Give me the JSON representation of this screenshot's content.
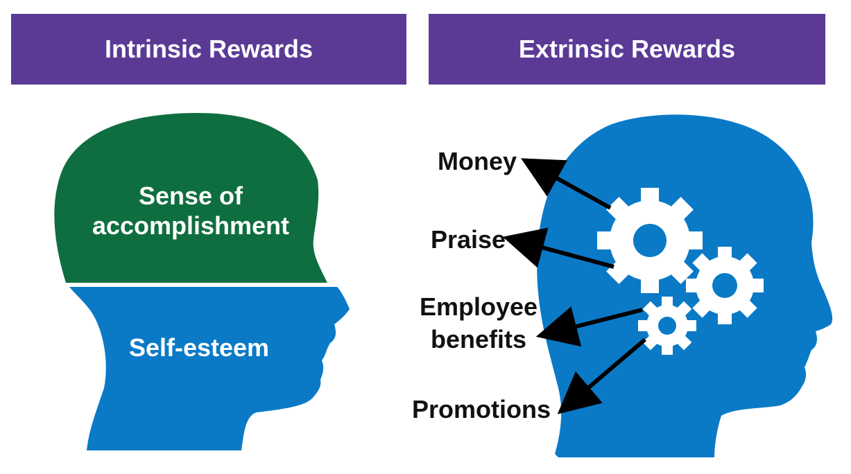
{
  "headers": {
    "intrinsic": "Intrinsic Rewards",
    "extrinsic": "Extrinsic Rewards"
  },
  "left_head": {
    "top_line1": "Sense of",
    "top_line2": "accomplishment",
    "bottom": "Self-esteem"
  },
  "right_head": {
    "money": "Money",
    "praise": "Praise",
    "benefits_line1": "Employee",
    "benefits_line2": "benefits",
    "promotions": "Promotions"
  },
  "colors": {
    "header": "#5b3a96",
    "head_blue": "#0a7ac7",
    "head_green": "#0f6e3f",
    "gear": "#ffffff",
    "arrow": "#000000"
  }
}
